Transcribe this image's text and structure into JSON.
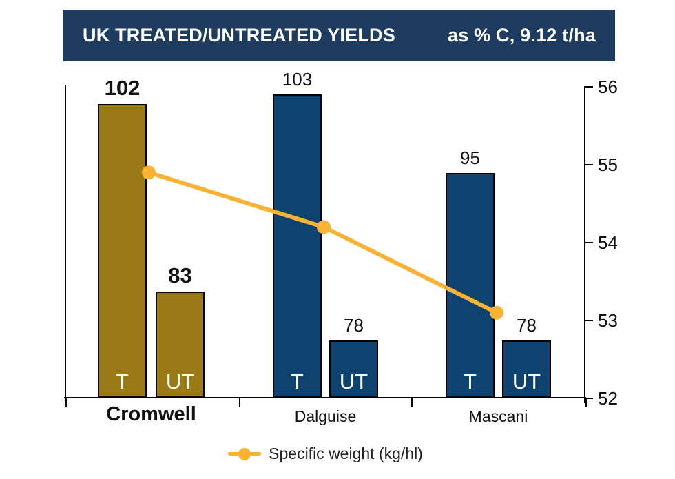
{
  "header": {
    "title": "UK TREATED/UNTREATED YIELDS",
    "note": "as % C, 9.12 t/ha",
    "bg_color": "#1d3c5f",
    "text_color": "#ffffff"
  },
  "chart_data": {
    "type": "bar",
    "title": "UK TREATED/UNTREATED YIELDS",
    "subtitle": "as % C, 9.12 t/ha",
    "groups": [
      {
        "name": "Cromwell",
        "emphasis": true,
        "bar_color": "#997a16",
        "bars": [
          {
            "label": "T",
            "value": 102
          },
          {
            "label": "UT",
            "value": 83
          }
        ],
        "specific_weight": 54.9
      },
      {
        "name": "Dalguise",
        "emphasis": false,
        "bar_color": "#0e4370",
        "bars": [
          {
            "label": "T",
            "value": 103
          },
          {
            "label": "UT",
            "value": 78
          }
        ],
        "specific_weight": 54.2
      },
      {
        "name": "Mascani",
        "emphasis": false,
        "bar_color": "#0e4370",
        "bars": [
          {
            "label": "T",
            "value": 95
          },
          {
            "label": "UT",
            "value": 78
          }
        ],
        "specific_weight": 53.1
      }
    ],
    "right_axis": {
      "title": "",
      "tick_values": [
        56,
        55,
        54,
        53,
        52
      ],
      "min": 52,
      "max": 56
    },
    "line_series": {
      "name": "Specific weight (kg/hl)",
      "color": "#f9b233",
      "values": [
        54.9,
        54.2,
        53.1
      ]
    },
    "legend": {
      "label": "Specific weight (kg/hl)",
      "position": "bottom-center"
    },
    "grid": false
  }
}
